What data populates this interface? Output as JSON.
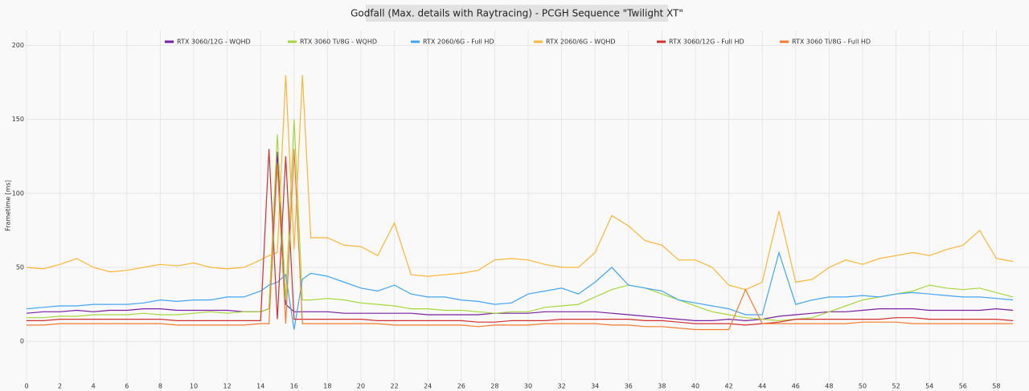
{
  "chart_data": {
    "type": "line",
    "title": "Godfall (Max. details with Raytracing) - PCGH Sequence \"Twilight XT\"",
    "y_label": "Frametime [ms]",
    "x": [
      0,
      1,
      2,
      3,
      4,
      5,
      6,
      7,
      8,
      9,
      10,
      11,
      12,
      13,
      14,
      14.5,
      15,
      15.5,
      16,
      16.5,
      17,
      18,
      19,
      20,
      21,
      22,
      23,
      24,
      25,
      26,
      27,
      28,
      29,
      30,
      31,
      32,
      33,
      34,
      35,
      36,
      37,
      38,
      39,
      40,
      41,
      42,
      43,
      44,
      45,
      46,
      47,
      48,
      49,
      50,
      51,
      52,
      53,
      54,
      55,
      56,
      57,
      58,
      59
    ],
    "series": [
      {
        "name": "RTX 3060/12G - WQHD",
        "color": "#7b1fa2",
        "values": [
          19,
          20,
          20,
          21,
          20,
          21,
          21,
          22,
          22,
          21,
          21,
          21,
          21,
          20,
          20,
          22,
          128,
          25,
          20,
          20,
          20,
          20,
          19,
          19,
          19,
          19,
          19,
          18,
          18,
          18,
          18,
          19,
          19,
          19,
          20,
          20,
          20,
          20,
          19,
          18,
          17,
          16,
          15,
          14,
          14,
          15,
          14,
          15,
          17,
          18,
          19,
          20,
          20,
          21,
          22,
          22,
          22,
          21,
          21,
          21,
          21,
          22,
          21
        ]
      },
      {
        "name": "RTX 3060 Ti/8G - WQHD",
        "color": "#a6d83b",
        "values": [
          16,
          16,
          17,
          17,
          18,
          18,
          18,
          19,
          18,
          18,
          19,
          20,
          19,
          20,
          20,
          22,
          140,
          28,
          150,
          28,
          28,
          29,
          28,
          26,
          25,
          24,
          22,
          22,
          21,
          21,
          20,
          19,
          20,
          20,
          23,
          24,
          25,
          30,
          35,
          38,
          36,
          32,
          28,
          24,
          20,
          18,
          16,
          15,
          14,
          15,
          16,
          20,
          24,
          28,
          30,
          32,
          34,
          38,
          36,
          35,
          36,
          33,
          30
        ]
      },
      {
        "name": "RTX 2060/6G - Full HD",
        "color": "#42a5f5",
        "values": [
          22,
          23,
          24,
          24,
          25,
          25,
          25,
          26,
          28,
          27,
          28,
          28,
          30,
          30,
          34,
          38,
          40,
          45,
          8,
          42,
          46,
          44,
          40,
          36,
          34,
          38,
          32,
          30,
          30,
          28,
          27,
          25,
          26,
          32,
          34,
          36,
          32,
          40,
          50,
          38,
          36,
          34,
          28,
          26,
          24,
          22,
          18,
          18,
          60,
          25,
          28,
          30,
          30,
          31,
          30,
          32,
          33,
          32,
          31,
          30,
          30,
          29,
          28
        ]
      },
      {
        "name": "RTX 2060/6G - WQHD",
        "color": "#fbb634",
        "values": [
          50,
          49,
          52,
          56,
          50,
          47,
          48,
          50,
          52,
          51,
          53,
          50,
          49,
          50,
          55,
          58,
          60,
          180,
          62,
          180,
          70,
          70,
          65,
          64,
          58,
          80,
          45,
          44,
          45,
          46,
          48,
          55,
          56,
          55,
          52,
          50,
          50,
          60,
          85,
          78,
          68,
          65,
          55,
          55,
          50,
          38,
          35,
          40,
          88,
          40,
          42,
          50,
          55,
          52,
          56,
          58,
          60,
          58,
          62,
          65,
          75,
          56,
          54
        ]
      },
      {
        "name": "RTX 3060/12G - Full HD",
        "color": "#d32f2f",
        "values": [
          14,
          14,
          15,
          15,
          15,
          15,
          15,
          15,
          15,
          14,
          14,
          14,
          14,
          14,
          14,
          130,
          15,
          125,
          15,
          15,
          15,
          15,
          15,
          15,
          14,
          14,
          14,
          14,
          14,
          14,
          13,
          13,
          14,
          14,
          14,
          15,
          15,
          15,
          15,
          15,
          14,
          14,
          13,
          12,
          12,
          12,
          11,
          12,
          13,
          15,
          15,
          15,
          15,
          15,
          15,
          16,
          16,
          15,
          15,
          15,
          15,
          15,
          14
        ]
      },
      {
        "name": "RTX 3060 Ti/8G - Full HD",
        "color": "#f57c2c",
        "values": [
          11,
          11,
          12,
          12,
          12,
          12,
          12,
          12,
          12,
          11,
          11,
          11,
          11,
          11,
          12,
          12,
          120,
          12,
          130,
          12,
          12,
          12,
          12,
          12,
          12,
          11,
          11,
          11,
          11,
          11,
          10,
          11,
          11,
          11,
          12,
          12,
          12,
          12,
          11,
          11,
          10,
          10,
          9,
          8,
          8,
          8,
          35,
          12,
          12,
          12,
          12,
          12,
          12,
          13,
          13,
          13,
          12,
          12,
          12,
          12,
          12,
          12,
          12
        ]
      }
    ],
    "xlim": [
      0,
      60
    ],
    "ylim": [
      -27,
      210
    ],
    "xticks": [
      0,
      2,
      4,
      6,
      8,
      10,
      12,
      14,
      16,
      18,
      20,
      22,
      24,
      26,
      28,
      30,
      32,
      34,
      36,
      38,
      40,
      42,
      44,
      46,
      48,
      50,
      52,
      54,
      56,
      58
    ],
    "yticks": [
      0,
      50,
      100,
      150,
      200
    ],
    "grid": true
  }
}
